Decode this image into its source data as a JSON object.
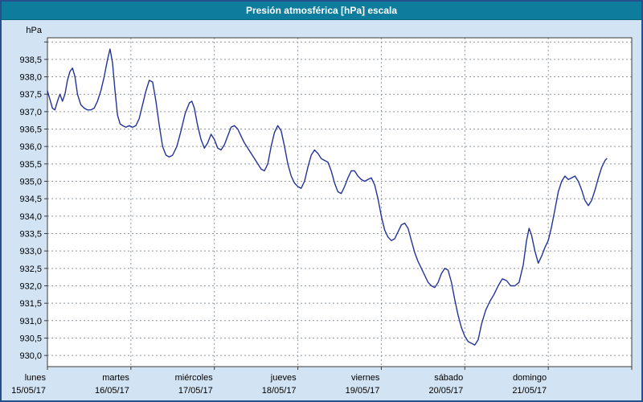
{
  "window": {
    "title": "Presión atmosférica [hPa] escala"
  },
  "colors": {
    "title_bg": "#0e7d9d",
    "title_fg": "#ffffff",
    "page_bg": "#d2e3f3",
    "plot_bg": "#ffffff",
    "grid": "#8f969e",
    "axis_border": "#3a3a3a",
    "line": "#223399",
    "label": "#000000"
  },
  "chart_data": {
    "type": "line",
    "title": "Presión atmosférica [hPa] escala",
    "ylabel": "hPa",
    "xlabel": "",
    "legend": "none",
    "grid": "dashed",
    "decimal_separator": ",",
    "ylim": [
      929.68,
      939.12
    ],
    "y_ticks": {
      "min": 930.0,
      "max": 938.5,
      "step": 0.5
    },
    "xlim_days": [
      0,
      7
    ],
    "x_days": [
      {
        "name": "lunes",
        "date": "15/05/17"
      },
      {
        "name": "martes",
        "date": "16/05/17"
      },
      {
        "name": "miércoles",
        "date": "17/05/17"
      },
      {
        "name": "jueves",
        "date": "18/05/17"
      },
      {
        "name": "viernes",
        "date": "19/05/17"
      },
      {
        "name": "sábado",
        "date": "20/05/17"
      },
      {
        "name": "domingo",
        "date": "21/05/17"
      }
    ],
    "series": [
      {
        "name": "Presión atmosférica",
        "unit": "hPa",
        "points": [
          [
            0.0,
            937.6
          ],
          [
            0.03,
            937.35
          ],
          [
            0.06,
            937.1
          ],
          [
            0.09,
            937.05
          ],
          [
            0.12,
            937.3
          ],
          [
            0.15,
            937.5
          ],
          [
            0.18,
            937.3
          ],
          [
            0.21,
            937.5
          ],
          [
            0.24,
            937.9
          ],
          [
            0.27,
            938.15
          ],
          [
            0.3,
            938.25
          ],
          [
            0.33,
            938.0
          ],
          [
            0.36,
            937.5
          ],
          [
            0.4,
            937.2
          ],
          [
            0.44,
            937.1
          ],
          [
            0.48,
            937.05
          ],
          [
            0.52,
            937.05
          ],
          [
            0.56,
            937.1
          ],
          [
            0.6,
            937.3
          ],
          [
            0.64,
            937.6
          ],
          [
            0.68,
            938.0
          ],
          [
            0.72,
            938.5
          ],
          [
            0.75,
            938.8
          ],
          [
            0.78,
            938.4
          ],
          [
            0.81,
            937.6
          ],
          [
            0.84,
            936.9
          ],
          [
            0.87,
            936.65
          ],
          [
            0.9,
            936.6
          ],
          [
            0.94,
            936.55
          ],
          [
            0.98,
            936.6
          ],
          [
            1.02,
            936.55
          ],
          [
            1.06,
            936.6
          ],
          [
            1.1,
            936.8
          ],
          [
            1.14,
            937.2
          ],
          [
            1.18,
            937.6
          ],
          [
            1.22,
            937.9
          ],
          [
            1.26,
            937.85
          ],
          [
            1.3,
            937.3
          ],
          [
            1.34,
            936.6
          ],
          [
            1.38,
            936.0
          ],
          [
            1.42,
            935.75
          ],
          [
            1.46,
            935.7
          ],
          [
            1.5,
            935.75
          ],
          [
            1.55,
            936.0
          ],
          [
            1.6,
            936.45
          ],
          [
            1.65,
            936.95
          ],
          [
            1.7,
            937.25
          ],
          [
            1.73,
            937.3
          ],
          [
            1.76,
            937.1
          ],
          [
            1.8,
            936.6
          ],
          [
            1.84,
            936.2
          ],
          [
            1.88,
            935.95
          ],
          [
            1.92,
            936.1
          ],
          [
            1.96,
            936.35
          ],
          [
            2.0,
            936.2
          ],
          [
            2.04,
            935.95
          ],
          [
            2.08,
            935.9
          ],
          [
            2.12,
            936.05
          ],
          [
            2.16,
            936.3
          ],
          [
            2.2,
            936.55
          ],
          [
            2.24,
            936.6
          ],
          [
            2.28,
            936.5
          ],
          [
            2.32,
            936.3
          ],
          [
            2.36,
            936.1
          ],
          [
            2.4,
            935.95
          ],
          [
            2.44,
            935.8
          ],
          [
            2.48,
            935.65
          ],
          [
            2.52,
            935.5
          ],
          [
            2.56,
            935.35
          ],
          [
            2.6,
            935.3
          ],
          [
            2.64,
            935.5
          ],
          [
            2.68,
            936.0
          ],
          [
            2.72,
            936.4
          ],
          [
            2.76,
            936.6
          ],
          [
            2.8,
            936.45
          ],
          [
            2.84,
            936.0
          ],
          [
            2.88,
            935.5
          ],
          [
            2.92,
            935.15
          ],
          [
            2.96,
            934.95
          ],
          [
            3.0,
            934.85
          ],
          [
            3.04,
            934.8
          ],
          [
            3.08,
            935.0
          ],
          [
            3.12,
            935.4
          ],
          [
            3.16,
            935.75
          ],
          [
            3.2,
            935.9
          ],
          [
            3.24,
            935.8
          ],
          [
            3.28,
            935.65
          ],
          [
            3.32,
            935.6
          ],
          [
            3.36,
            935.55
          ],
          [
            3.4,
            935.3
          ],
          [
            3.44,
            934.95
          ],
          [
            3.48,
            934.7
          ],
          [
            3.52,
            934.65
          ],
          [
            3.56,
            934.85
          ],
          [
            3.6,
            935.1
          ],
          [
            3.64,
            935.3
          ],
          [
            3.68,
            935.3
          ],
          [
            3.72,
            935.15
          ],
          [
            3.76,
            935.05
          ],
          [
            3.8,
            935.0
          ],
          [
            3.84,
            935.05
          ],
          [
            3.88,
            935.1
          ],
          [
            3.92,
            934.9
          ],
          [
            3.96,
            934.5
          ],
          [
            4.0,
            934.0
          ],
          [
            4.04,
            933.6
          ],
          [
            4.08,
            933.4
          ],
          [
            4.12,
            933.3
          ],
          [
            4.16,
            933.35
          ],
          [
            4.2,
            933.55
          ],
          [
            4.24,
            933.75
          ],
          [
            4.28,
            933.8
          ],
          [
            4.32,
            933.65
          ],
          [
            4.36,
            933.3
          ],
          [
            4.4,
            932.95
          ],
          [
            4.44,
            932.7
          ],
          [
            4.48,
            932.5
          ],
          [
            4.52,
            932.3
          ],
          [
            4.56,
            932.1
          ],
          [
            4.6,
            932.0
          ],
          [
            4.64,
            931.95
          ],
          [
            4.68,
            932.1
          ],
          [
            4.72,
            932.35
          ],
          [
            4.76,
            932.5
          ],
          [
            4.8,
            932.45
          ],
          [
            4.84,
            932.1
          ],
          [
            4.88,
            931.6
          ],
          [
            4.92,
            931.15
          ],
          [
            4.96,
            930.8
          ],
          [
            5.0,
            930.55
          ],
          [
            5.04,
            930.4
          ],
          [
            5.08,
            930.35
          ],
          [
            5.12,
            930.3
          ],
          [
            5.16,
            930.45
          ],
          [
            5.2,
            930.9
          ],
          [
            5.25,
            931.3
          ],
          [
            5.3,
            931.55
          ],
          [
            5.35,
            931.75
          ],
          [
            5.4,
            932.0
          ],
          [
            5.45,
            932.2
          ],
          [
            5.5,
            932.15
          ],
          [
            5.55,
            932.0
          ],
          [
            5.6,
            932.0
          ],
          [
            5.65,
            932.1
          ],
          [
            5.7,
            932.6
          ],
          [
            5.74,
            933.3
          ],
          [
            5.77,
            933.65
          ],
          [
            5.8,
            933.45
          ],
          [
            5.84,
            933.0
          ],
          [
            5.88,
            932.65
          ],
          [
            5.92,
            932.85
          ],
          [
            5.96,
            933.1
          ],
          [
            6.0,
            933.3
          ],
          [
            6.04,
            933.7
          ],
          [
            6.08,
            934.2
          ],
          [
            6.12,
            934.7
          ],
          [
            6.16,
            935.0
          ],
          [
            6.2,
            935.15
          ],
          [
            6.24,
            935.05
          ],
          [
            6.28,
            935.1
          ],
          [
            6.32,
            935.15
          ],
          [
            6.36,
            935.0
          ],
          [
            6.4,
            934.75
          ],
          [
            6.44,
            934.45
          ],
          [
            6.48,
            934.3
          ],
          [
            6.52,
            934.45
          ],
          [
            6.56,
            934.75
          ],
          [
            6.6,
            935.1
          ],
          [
            6.64,
            935.4
          ],
          [
            6.68,
            935.6
          ],
          [
            6.7,
            935.65
          ]
        ]
      }
    ]
  }
}
